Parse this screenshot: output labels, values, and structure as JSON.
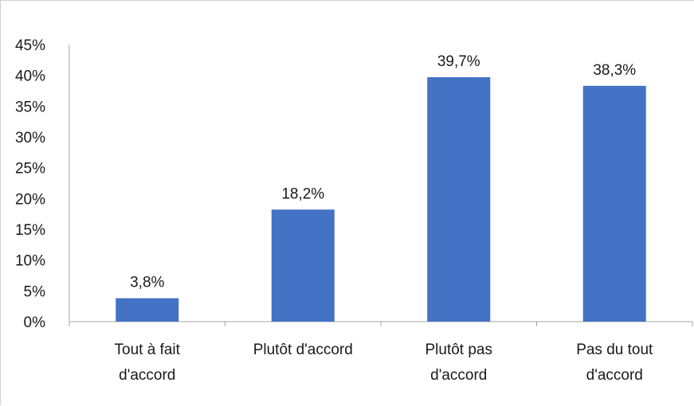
{
  "chart_data": {
    "type": "bar",
    "title": "",
    "xlabel": "",
    "ylabel": "",
    "categories": [
      [
        "Tout à fait",
        "d'accord"
      ],
      [
        "Plutôt d'accord"
      ],
      [
        "Plutôt pas",
        "d'accord"
      ],
      [
        "Pas du tout",
        "d'accord"
      ]
    ],
    "values": [
      3.8,
      18.2,
      39.7,
      38.3
    ],
    "data_labels": [
      "3,8%",
      "18,2%",
      "39,7%",
      "38,3%"
    ],
    "ylim": [
      0,
      45
    ],
    "yticks": [
      0,
      5,
      10,
      15,
      20,
      25,
      30,
      35,
      40,
      45
    ],
    "ytick_labels": [
      "0%",
      "5%",
      "10%",
      "15%",
      "20%",
      "25%",
      "30%",
      "35%",
      "40%",
      "45%"
    ],
    "grid": false,
    "legend": "none",
    "bar_color": "#4472C4",
    "axis_color": "#a6a6a6"
  }
}
